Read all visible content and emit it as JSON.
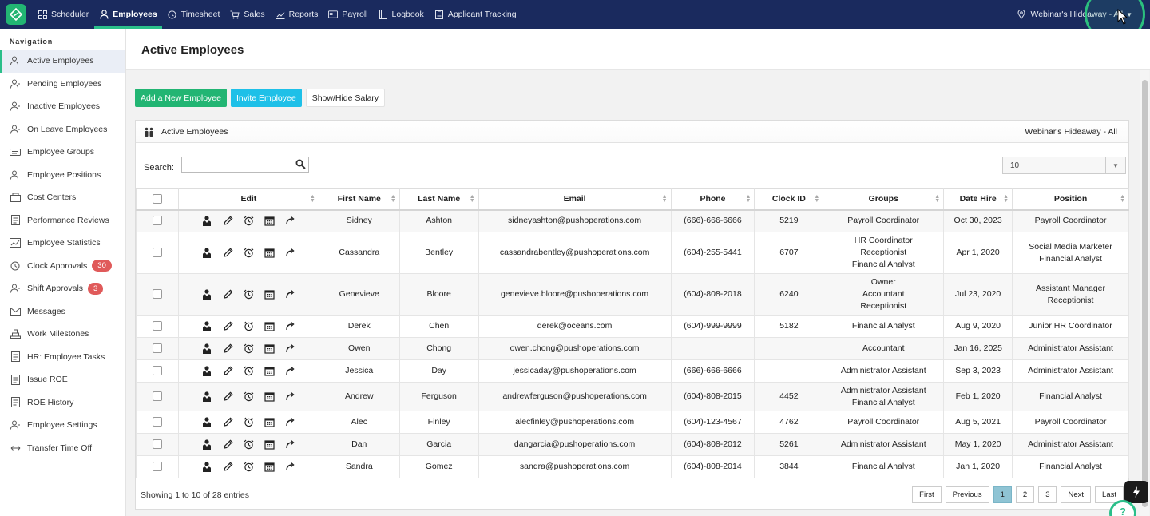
{
  "topnav": {
    "items": [
      {
        "label": "Scheduler",
        "icon": "grid-icon"
      },
      {
        "label": "Employees",
        "icon": "person-icon",
        "active": true
      },
      {
        "label": "Timesheet",
        "icon": "clock-icon"
      },
      {
        "label": "Sales",
        "icon": "cart-icon"
      },
      {
        "label": "Reports",
        "icon": "chart-icon"
      },
      {
        "label": "Payroll",
        "icon": "card-icon"
      },
      {
        "label": "Logbook",
        "icon": "book-icon"
      },
      {
        "label": "Applicant Tracking",
        "icon": "clipboard-icon"
      }
    ],
    "location": "Webinar's Hideaway - All"
  },
  "sidebar": {
    "heading": "Navigation",
    "items": [
      {
        "label": "Active Employees",
        "active": true
      },
      {
        "label": "Pending Employees"
      },
      {
        "label": "Inactive Employees"
      },
      {
        "label": "On Leave Employees"
      },
      {
        "label": "Employee Groups"
      },
      {
        "label": "Employee Positions"
      },
      {
        "label": "Cost Centers"
      },
      {
        "label": "Performance Reviews"
      },
      {
        "label": "Employee Statistics"
      },
      {
        "label": "Clock Approvals",
        "badge": "30"
      },
      {
        "label": "Shift Approvals",
        "badge": "3"
      },
      {
        "label": "Messages"
      },
      {
        "label": "Work Milestones"
      },
      {
        "label": "HR: Employee Tasks"
      },
      {
        "label": "Issue ROE"
      },
      {
        "label": "ROE History"
      },
      {
        "label": "Employee Settings"
      },
      {
        "label": "Transfer Time Off"
      }
    ]
  },
  "main": {
    "title": "Active Employees",
    "buttons": {
      "add": "Add a New Employee",
      "invite": "Invite Employee",
      "salary": "Show/Hide Salary"
    },
    "panel": {
      "title": "Active Employees",
      "location": "Webinar's Hideaway - All",
      "search_label": "Search:",
      "search_value": "",
      "page_length": "10"
    },
    "columns": [
      "Edit",
      "First Name",
      "Last Name",
      "Email",
      "Phone",
      "Clock ID",
      "Groups",
      "Date Hire",
      "Position"
    ],
    "rows": [
      {
        "first": "Sidney",
        "last": "Ashton",
        "email": "sidneyashton@pushoperations.com",
        "phone": "(666)-666-6666",
        "clock": "5219",
        "groups": [
          "Payroll Coordinator"
        ],
        "hire": "Oct 30, 2023",
        "position": [
          "Payroll Coordinator"
        ]
      },
      {
        "first": "Cassandra",
        "last": "Bentley",
        "email": "cassandrabentley@pushoperations.com",
        "phone": "(604)-255-5441",
        "clock": "6707",
        "groups": [
          "HR Coordinator",
          "Receptionist",
          "Financial Analyst"
        ],
        "hire": "Apr 1, 2020",
        "position": [
          "Social Media Marketer",
          "Financial Analyst"
        ]
      },
      {
        "first": "Genevieve",
        "last": "Bloore",
        "email": "genevieve.bloore@pushoperations.com",
        "phone": "(604)-808-2018",
        "clock": "6240",
        "groups": [
          "Owner",
          "Accountant",
          "Receptionist"
        ],
        "hire": "Jul 23, 2020",
        "position": [
          "Assistant Manager",
          "Receptionist"
        ]
      },
      {
        "first": "Derek",
        "last": "Chen",
        "email": "derek@oceans.com",
        "phone": "(604)-999-9999",
        "clock": "5182",
        "groups": [
          "Financial Analyst"
        ],
        "hire": "Aug 9, 2020",
        "position": [
          "Junior HR Coordinator"
        ]
      },
      {
        "first": "Owen",
        "last": "Chong",
        "email": "owen.chong@pushoperations.com",
        "phone": "",
        "clock": "",
        "groups": [
          "Accountant"
        ],
        "hire": "Jan 16, 2025",
        "position": [
          "Administrator Assistant"
        ]
      },
      {
        "first": "Jessica",
        "last": "Day",
        "email": "jessicaday@pushoperations.com",
        "phone": "(666)-666-6666",
        "clock": "",
        "groups": [
          "Administrator Assistant"
        ],
        "hire": "Sep 3, 2023",
        "position": [
          "Administrator Assistant"
        ]
      },
      {
        "first": "Andrew",
        "last": "Ferguson",
        "email": "andrewferguson@pushoperations.com",
        "phone": "(604)-808-2015",
        "clock": "4452",
        "groups": [
          "Administrator Assistant",
          "Financial Analyst"
        ],
        "hire": "Feb 1, 2020",
        "position": [
          "Financial Analyst"
        ]
      },
      {
        "first": "Alec",
        "last": "Finley",
        "email": "alecfinley@pushoperations.com",
        "phone": "(604)-123-4567",
        "clock": "4762",
        "groups": [
          "Payroll Coordinator"
        ],
        "hire": "Aug 5, 2021",
        "position": [
          "Payroll Coordinator"
        ]
      },
      {
        "first": "Dan",
        "last": "Garcia",
        "email": "dangarcia@pushoperations.com",
        "phone": "(604)-808-2012",
        "clock": "5261",
        "groups": [
          "Administrator Assistant"
        ],
        "hire": "May 1, 2020",
        "position": [
          "Administrator Assistant"
        ]
      },
      {
        "first": "Sandra",
        "last": "Gomez",
        "email": "sandra@pushoperations.com",
        "phone": "(604)-808-2014",
        "clock": "3844",
        "groups": [
          "Financial Analyst"
        ],
        "hire": "Jan 1, 2020",
        "position": [
          "Financial Analyst"
        ]
      }
    ],
    "info": "Showing 1 to 10 of 28 entries",
    "pager": [
      "First",
      "Previous",
      "1",
      "2",
      "3",
      "Next",
      "Last"
    ],
    "current_page": "1"
  },
  "colors": {
    "nav": "#1a2a5e",
    "green": "#22b573",
    "cyan": "#1ec0e8",
    "badge": "#e05a5a"
  }
}
